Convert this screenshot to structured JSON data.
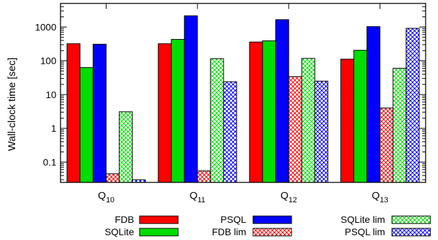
{
  "chart_data": {
    "type": "bar",
    "ylabel": "Wall-clock time [sec]",
    "yscale": "log",
    "ylim": [
      0.025,
      5000
    ],
    "yticks": [
      {
        "value": 0.1,
        "label": "0.1"
      },
      {
        "value": 1,
        "label": "1"
      },
      {
        "value": 10,
        "label": "10"
      },
      {
        "value": 100,
        "label": "100"
      },
      {
        "value": 1000,
        "label": "1000"
      }
    ],
    "categories": [
      {
        "base": "Q",
        "sub": "10"
      },
      {
        "base": "Q",
        "sub": "11"
      },
      {
        "base": "Q",
        "sub": "12"
      },
      {
        "base": "Q",
        "sub": "13"
      }
    ],
    "series": [
      {
        "name": "FDB",
        "color": "#ff0000",
        "fill": "solid",
        "values": [
          320,
          320,
          360,
          112
        ]
      },
      {
        "name": "SQLite",
        "color": "#00dd00",
        "fill": "solid",
        "values": [
          63,
          430,
          390,
          205
        ]
      },
      {
        "name": "PSQL",
        "color": "#0000ff",
        "fill": "solid",
        "values": [
          310,
          2150,
          1650,
          1030
        ]
      },
      {
        "name": "FDB lim",
        "color": "#ff0000",
        "fill": "crosshatch",
        "values": [
          0.045,
          0.055,
          34,
          4
        ]
      },
      {
        "name": "SQLite lim",
        "color": "#00dd00",
        "fill": "crosshatch",
        "values": [
          3.1,
          115,
          118,
          60
        ]
      },
      {
        "name": "PSQL lim",
        "color": "#0000ff",
        "fill": "crosshatch",
        "values": [
          0.03,
          24,
          25,
          920
        ]
      }
    ],
    "legend": "bottom"
  }
}
